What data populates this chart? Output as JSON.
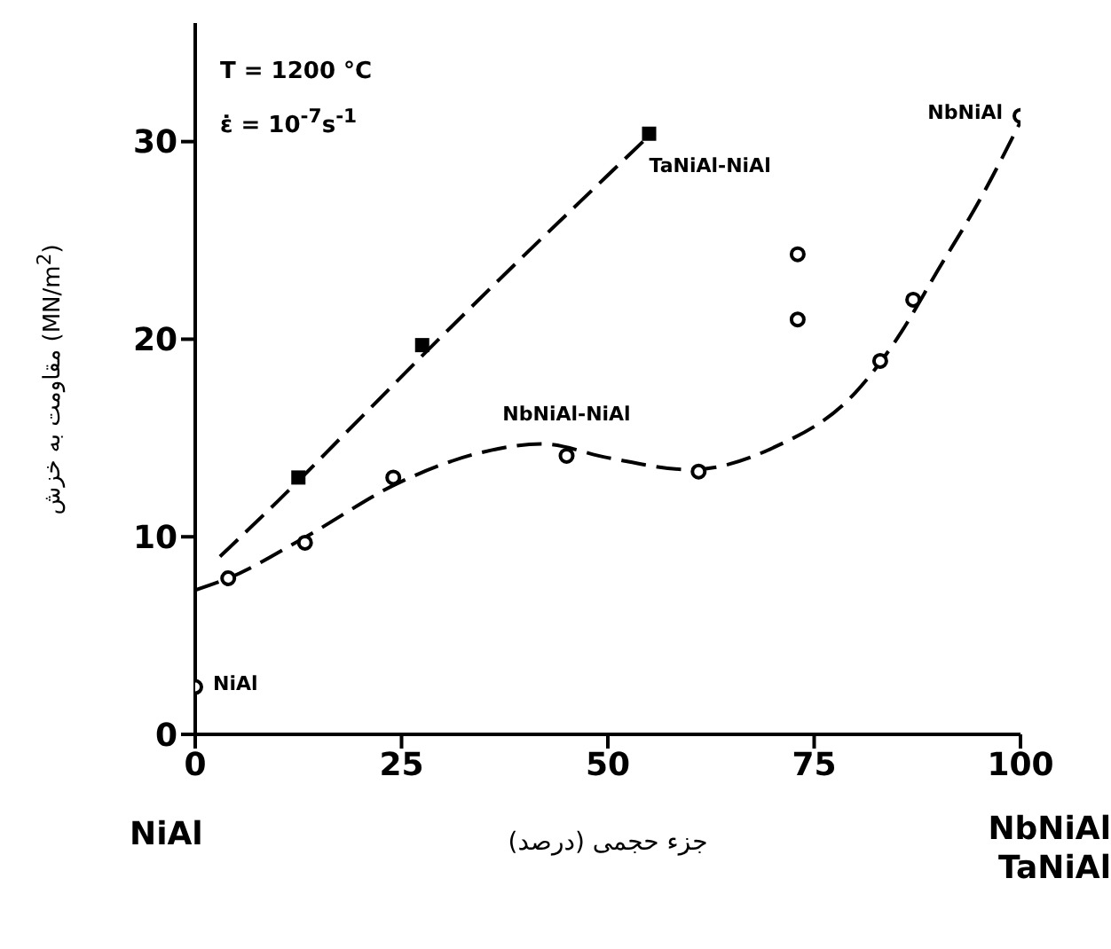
{
  "chart_data": {
    "type": "scatter",
    "xlabel": "جزء حجمی (درصد)",
    "ylabel": "مقاومت به خزش (MN/m$^{2}$)",
    "xlim": [
      0,
      100
    ],
    "ylim": [
      0,
      36
    ],
    "xticks": [
      0,
      25,
      50,
      75,
      100
    ],
    "yticks": [
      0,
      10,
      20,
      30
    ],
    "line_style": "dashed",
    "series": [
      {
        "marker": "square",
        "color": "#000000",
        "x": [
          12.5,
          27.5,
          55
        ],
        "values": [
          13,
          19.7,
          30.4
        ]
      },
      {
        "marker": "circle",
        "color": "#000000",
        "x": [
          4,
          13.3,
          24,
          45,
          61,
          73,
          73,
          83,
          87,
          100
        ],
        "values": [
          7.9,
          9.7,
          13,
          14.1,
          13.3,
          24.3,
          21,
          18.9,
          22,
          31.3
        ]
      },
      {
        "marker": "circle",
        "color": "#000000",
        "x": [
          0
        ],
        "values": [
          2.4
        ]
      },
      {
        "type": "line",
        "marker": "none",
        "color": "#000000",
        "x": [
          3,
          10,
          20,
          30,
          40,
          50,
          55
        ],
        "values": [
          9,
          11.8,
          16,
          20.2,
          24.3,
          28.3,
          30.3
        ]
      },
      {
        "type": "line",
        "marker": "none",
        "color": "#000000",
        "x": [
          0,
          4,
          13,
          25,
          35,
          42,
          50,
          60,
          70,
          80,
          85,
          90,
          95,
          100
        ],
        "values": [
          7.3,
          7.9,
          9.9,
          12.8,
          14.3,
          14.7,
          14,
          13.4,
          14.5,
          17.3,
          20,
          23.5,
          27,
          31
        ]
      }
    ],
    "annotations": [
      "T = 1200 °C",
      "ε̇ = 10$^{-7}$s$^{-1}$",
      "NiAl",
      "NbNiAl\nTaNiAl",
      {
        "text": "TaNiAl-NiAl",
        "x": 55,
        "y": 30.4
      },
      {
        "text": "NbNiAl-NiAl",
        "x": 45,
        "y": 14.1
      },
      {
        "text": "NiAl",
        "x": 0,
        "y": 2.4
      },
      {
        "text": "NbNiAl",
        "x": 100,
        "y": 31.3
      }
    ]
  }
}
